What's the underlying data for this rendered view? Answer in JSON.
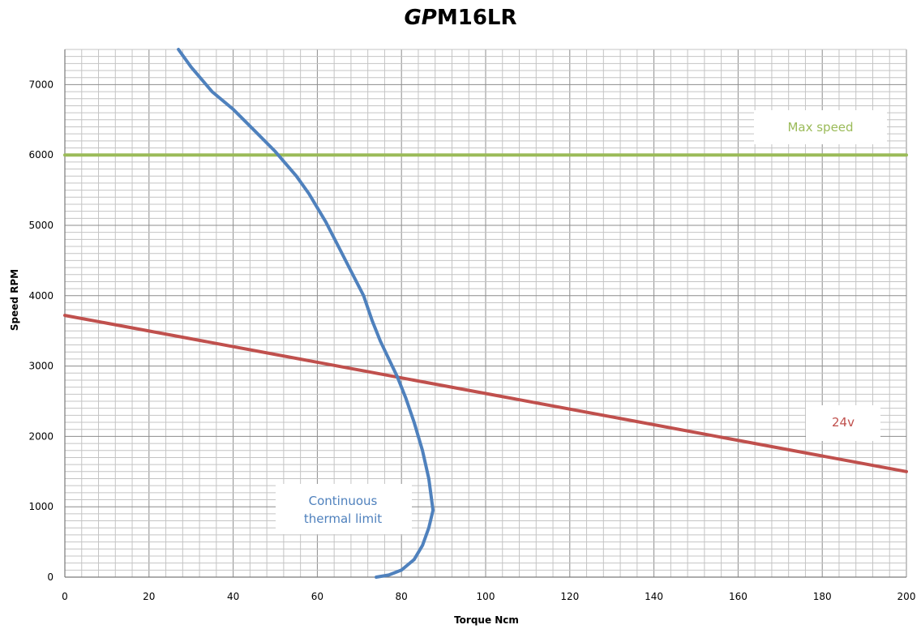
{
  "chart_data": {
    "type": "line",
    "title_prefix": "GP",
    "title_suffix": "M16LR",
    "xlabel": "Torque Ncm",
    "ylabel": "Speed RPM",
    "xlim": [
      0,
      200
    ],
    "ylim": [
      0,
      7500
    ],
    "x_ticks": [
      0,
      20,
      40,
      60,
      80,
      100,
      120,
      140,
      160,
      180,
      200
    ],
    "y_ticks": [
      0,
      1000,
      2000,
      3000,
      4000,
      5000,
      6000,
      7000
    ],
    "grid": true,
    "series": [
      {
        "name": "Continuous thermal limit",
        "label_lines": [
          "Continuous",
          "thermal limit"
        ],
        "color": "#4f81bd",
        "points": [
          [
            27,
            7500
          ],
          [
            30,
            7250
          ],
          [
            35,
            6900
          ],
          [
            40,
            6650
          ],
          [
            45,
            6350
          ],
          [
            50,
            6050
          ],
          [
            55,
            5700
          ],
          [
            58,
            5450
          ],
          [
            62,
            5050
          ],
          [
            65,
            4700
          ],
          [
            68,
            4350
          ],
          [
            71,
            4000
          ],
          [
            73,
            3650
          ],
          [
            75,
            3350
          ],
          [
            77,
            3100
          ],
          [
            79,
            2850
          ],
          [
            81,
            2550
          ],
          [
            83,
            2200
          ],
          [
            85,
            1800
          ],
          [
            86.5,
            1400
          ],
          [
            87.5,
            950
          ],
          [
            86.5,
            700
          ],
          [
            85,
            450
          ],
          [
            83,
            250
          ],
          [
            80,
            100
          ],
          [
            77,
            30
          ],
          [
            74,
            0
          ]
        ]
      },
      {
        "name": "24v",
        "color": "#c0504d",
        "points": [
          [
            0,
            3720
          ],
          [
            200,
            1500
          ]
        ]
      },
      {
        "name": "Max speed",
        "color": "#9bbb59",
        "points": [
          [
            0,
            6000
          ],
          [
            200,
            6000
          ]
        ]
      }
    ]
  }
}
